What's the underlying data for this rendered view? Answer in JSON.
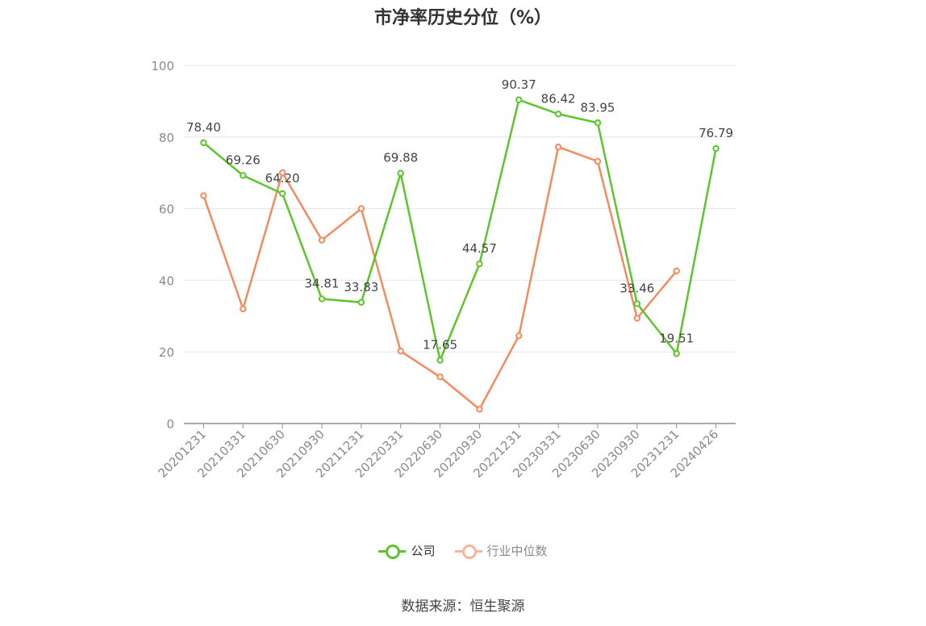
{
  "title": "市净率历史分位（%）",
  "source": "数据来源：恒生聚源",
  "colors": {
    "company": "#5ec42b",
    "industry": "#f28b5e",
    "grid": "#e4e6ec",
    "axis": "#8c8ea0",
    "tick_text": "#8a8a8a"
  },
  "legend": [
    {
      "label": "公司",
      "color": "#5ec42b"
    },
    {
      "label": "行业中位数",
      "color": "#f7b49a"
    }
  ],
  "chart_data": {
    "type": "line",
    "title": "市净率历史分位（%）",
    "xlabel": "",
    "ylabel": "",
    "ylim": [
      0,
      100
    ],
    "yticks": [
      0,
      20,
      40,
      60,
      80,
      100
    ],
    "grid": true,
    "legend_position": "bottom",
    "categories": [
      "20201231",
      "20210331",
      "20210630",
      "20210930",
      "20211231",
      "20220331",
      "20220630",
      "20220930",
      "20221231",
      "20230331",
      "20230630",
      "20230930",
      "20231231",
      "20240426"
    ],
    "series": [
      {
        "name": "公司",
        "color": "#5ec42b",
        "show_labels": true,
        "values": [
          78.4,
          69.26,
          64.2,
          34.81,
          33.83,
          69.88,
          17.65,
          44.57,
          90.37,
          86.42,
          83.95,
          33.46,
          19.51,
          76.79
        ],
        "labels": [
          "78.40",
          "69.26",
          "64.20",
          "34.81",
          "33.83",
          "69.88",
          "17.65",
          "44.57",
          "90.37",
          "86.42",
          "83.95",
          "33.46",
          "19.51",
          "76.79"
        ]
      },
      {
        "name": "行业中位数",
        "color": "#f28b5e",
        "show_labels": false,
        "values": [
          63.6,
          32.0,
          70.0,
          51.2,
          60.0,
          20.2,
          13.0,
          4.0,
          24.5,
          77.2,
          73.2,
          29.4,
          42.6,
          null
        ]
      }
    ]
  }
}
